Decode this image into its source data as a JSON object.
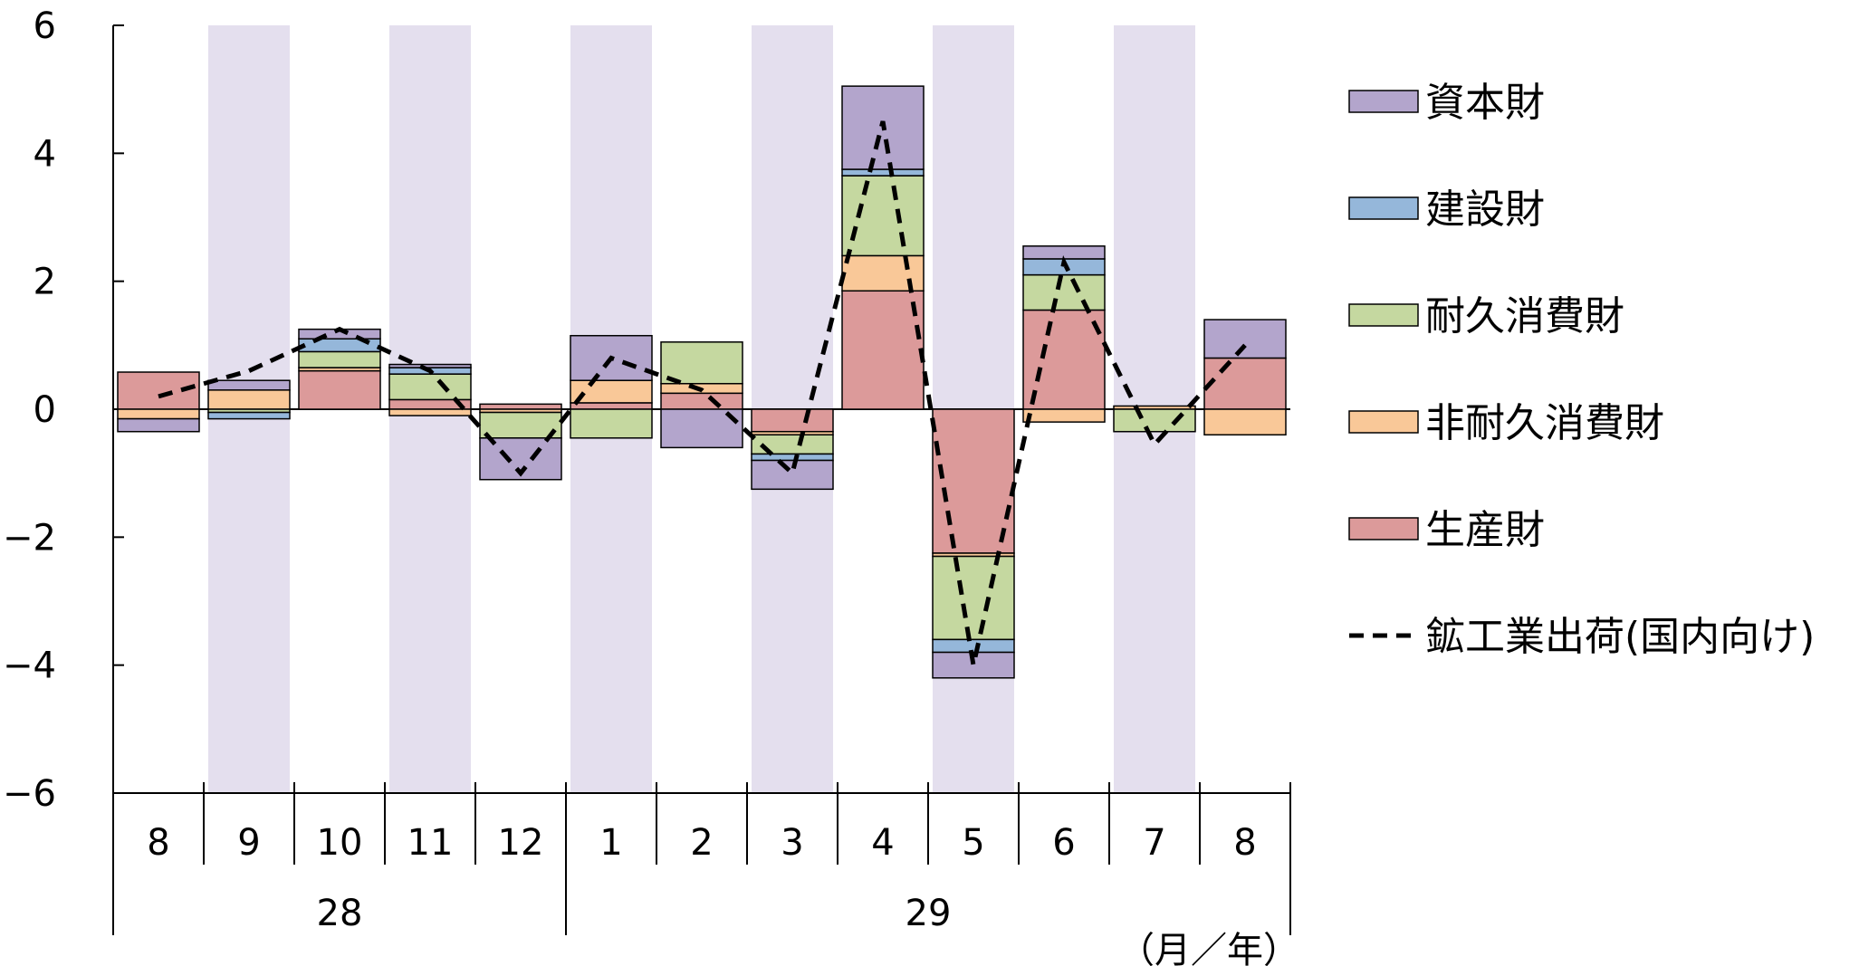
{
  "chart_data": {
    "type": "bar",
    "stacked": true,
    "ylim": [
      -6,
      6
    ],
    "yticks": [
      "6",
      "4",
      "2",
      "0",
      "−2",
      "−4",
      "−6"
    ],
    "months": [
      "8",
      "9",
      "10",
      "11",
      "12",
      "1",
      "2",
      "3",
      "4",
      "5",
      "6",
      "7",
      "8"
    ],
    "years": [
      {
        "label": "28",
        "months": 5
      },
      {
        "label": "29",
        "months": 8
      }
    ],
    "unit_label": "（月／年）",
    "shaded_months": [
      1,
      3,
      5,
      7,
      9,
      11
    ],
    "shade_color": "#e4dfee",
    "series": [
      {
        "name": "資本財",
        "color": "#b3a5cc",
        "values": [
          -0.2,
          0.15,
          0.15,
          0.05,
          -0.65,
          0.7,
          -0.6,
          -0.45,
          1.3,
          -0.4,
          0.2,
          0.0,
          0.6
        ]
      },
      {
        "name": "建設財",
        "color": "#95b7da",
        "values": [
          0.0,
          -0.1,
          0.2,
          0.1,
          0.0,
          0.0,
          0.0,
          -0.1,
          0.1,
          -0.2,
          0.25,
          0.0,
          0.0
        ]
      },
      {
        "name": "耐久消費財",
        "color": "#c5d8a0",
        "values": [
          0.0,
          -0.05,
          0.25,
          0.4,
          -0.4,
          -0.45,
          0.65,
          -0.3,
          1.25,
          -1.3,
          0.55,
          -0.35,
          0.0
        ]
      },
      {
        "name": "非耐久消費財",
        "color": "#f9c898",
        "values": [
          -0.15,
          0.3,
          0.05,
          -0.1,
          -0.05,
          0.35,
          0.15,
          -0.05,
          0.55,
          -0.05,
          -0.2,
          0.05,
          -0.4
        ]
      },
      {
        "name": "生産財",
        "color": "#dc9a9a",
        "values": [
          0.58,
          0.0,
          0.6,
          0.15,
          0.08,
          0.1,
          0.25,
          -0.35,
          1.85,
          -2.25,
          1.55,
          0.0,
          0.8
        ]
      }
    ],
    "line": {
      "name": "鉱工業出荷(国内向け)",
      "color": "#000000",
      "values": [
        0.2,
        0.6,
        1.25,
        0.6,
        -1.0,
        0.8,
        0.3,
        -1.0,
        4.5,
        -4.0,
        2.3,
        -0.55,
        1.0
      ]
    },
    "legend_position": "right"
  }
}
